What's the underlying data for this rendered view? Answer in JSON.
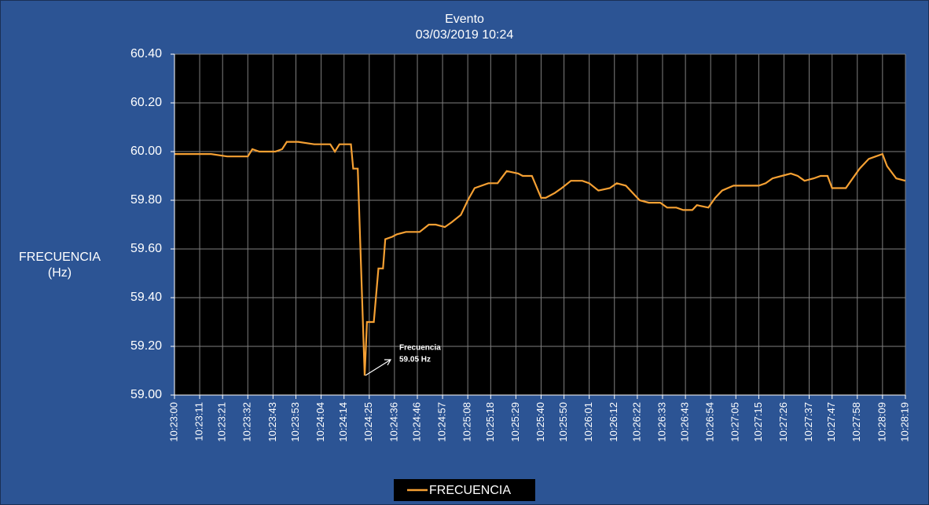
{
  "chart_data": {
    "type": "line",
    "title": "Evento",
    "subtitle": "03/03/2019  10:24",
    "ylabel": [
      "FRECUENCIA",
      "(Hz)"
    ],
    "annotation": [
      "Frecuencia",
      "59.05 Hz"
    ],
    "x": [
      "10:23:00",
      "10:23:16",
      "10:23:23",
      "10:23:32",
      "10:23:34",
      "10:23:37",
      "10:23:44",
      "10:23:47",
      "10:23:49",
      "10:23:54",
      "10:24:01",
      "10:24:08",
      "10:24:10",
      "10:24:12",
      "10:24:17",
      "10:24:18",
      "10:24:20",
      "10:24:23",
      "10:24:24",
      "10:24:27",
      "10:24:29",
      "10:24:31",
      "10:24:32",
      "10:24:35",
      "10:24:37",
      "10:24:41",
      "10:24:47",
      "10:24:51",
      "10:24:54",
      "10:24:58",
      "10:25:01",
      "10:25:05",
      "10:25:08",
      "10:25:11",
      "10:25:17",
      "10:25:21",
      "10:25:25",
      "10:25:30",
      "10:25:32",
      "10:25:36",
      "10:25:40",
      "10:25:42",
      "10:25:46",
      "10:25:49",
      "10:25:53",
      "10:25:58",
      "10:26:01",
      "10:26:05",
      "10:26:10",
      "10:26:13",
      "10:26:17",
      "10:26:20",
      "10:26:23",
      "10:26:27",
      "10:26:32",
      "10:26:35",
      "10:26:39",
      "10:26:42",
      "10:26:46",
      "10:26:48",
      "10:26:53",
      "10:26:56",
      "10:26:59",
      "10:27:04",
      "10:27:08",
      "10:27:15",
      "10:27:18",
      "10:27:21",
      "10:27:25",
      "10:27:29",
      "10:27:32",
      "10:27:35",
      "10:27:39",
      "10:27:42",
      "10:27:45",
      "10:27:47",
      "10:27:53",
      "10:27:56",
      "10:27:59",
      "10:28:03",
      "10:28:06",
      "10:28:09",
      "10:28:11",
      "10:28:15",
      "10:28:19"
    ],
    "series": [
      {
        "name": "FRECUENCIA",
        "color": "#f5a033",
        "values": [
          59.99,
          59.99,
          59.98,
          59.98,
          60.01,
          60.0,
          60.0,
          60.01,
          60.04,
          60.04,
          60.03,
          60.03,
          60.0,
          60.03,
          60.03,
          59.93,
          59.93,
          59.08,
          59.3,
          59.3,
          59.52,
          59.52,
          59.64,
          59.65,
          59.66,
          59.67,
          59.67,
          59.7,
          59.7,
          59.69,
          59.71,
          59.74,
          59.8,
          59.85,
          59.87,
          59.87,
          59.92,
          59.91,
          59.9,
          59.9,
          59.81,
          59.81,
          59.83,
          59.85,
          59.88,
          59.88,
          59.87,
          59.84,
          59.85,
          59.87,
          59.86,
          59.83,
          59.8,
          59.79,
          59.79,
          59.77,
          59.77,
          59.76,
          59.76,
          59.78,
          59.77,
          59.81,
          59.84,
          59.86,
          59.86,
          59.86,
          59.87,
          59.89,
          59.9,
          59.91,
          59.9,
          59.88,
          59.89,
          59.9,
          59.9,
          59.85,
          59.85,
          59.89,
          59.93,
          59.97,
          59.98,
          59.99,
          59.94,
          59.89,
          59.88
        ]
      }
    ],
    "xlim": [
      "10:23:00",
      "10:28:19"
    ],
    "xticks": [
      "10:23:00",
      "10:23:11",
      "10:23:21",
      "10:23:32",
      "10:23:43",
      "10:23:53",
      "10:24:04",
      "10:24:14",
      "10:24:25",
      "10:24:36",
      "10:24:46",
      "10:24:57",
      "10:25:08",
      "10:25:18",
      "10:25:29",
      "10:25:40",
      "10:25:50",
      "10:26:01",
      "10:26:12",
      "10:26:22",
      "10:26:33",
      "10:26:43",
      "10:26:54",
      "10:27:05",
      "10:27:15",
      "10:27:26",
      "10:27:37",
      "10:27:47",
      "10:27:58",
      "10:28:09",
      "10:28:19"
    ],
    "ylim": [
      59,
      60.4
    ],
    "yticks": [
      {
        "value": 59,
        "label": "59.00"
      },
      {
        "value": 59.2,
        "label": "59.20"
      },
      {
        "value": 59.4,
        "label": "59.40"
      },
      {
        "value": 59.6,
        "label": "59.60"
      },
      {
        "value": 59.8,
        "label": "59.80"
      },
      {
        "value": 60,
        "label": "60.00"
      },
      {
        "value": 60.2,
        "label": "60.20"
      },
      {
        "value": 60.4,
        "label": "60.40"
      }
    ],
    "grid": true,
    "legend": "bottom"
  }
}
